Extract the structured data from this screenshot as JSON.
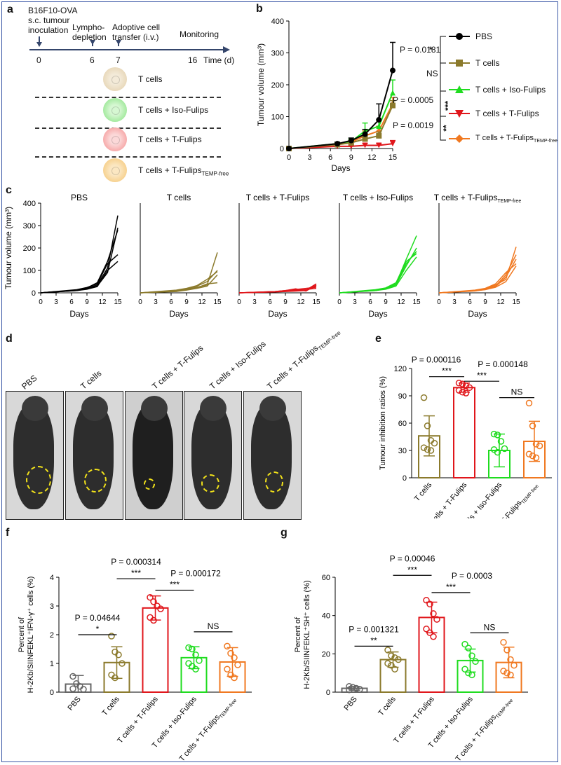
{
  "panel_letters": [
    "a",
    "b",
    "c",
    "d",
    "e",
    "f",
    "g"
  ],
  "timeline": {
    "event1": [
      "B16F10-OVA",
      "s.c. tumour",
      "inoculation"
    ],
    "event2": [
      "Lympho-",
      "depletion"
    ],
    "event3": [
      "Adoptive cell",
      "transfer (i.v.)"
    ],
    "event4": "Monitoring",
    "ticks": [
      "0",
      "6",
      "7",
      "16"
    ],
    "axis_label": "Time (d)",
    "groups": [
      {
        "label": "T cells",
        "color": "#e7d7b8"
      },
      {
        "label": "T cells + Iso-Fulips",
        "color": "#9fe89a"
      },
      {
        "label": "T cells + T-Fulips",
        "color": "#f6a6a6"
      },
      {
        "label": "T cells + T-Fulips",
        "sub": "TEMP-free",
        "color": "#f6cf8a"
      }
    ]
  },
  "legend_b": [
    {
      "label": "PBS",
      "color": "#000000"
    },
    {
      "label": "T cells",
      "color": "#8b7a2c"
    },
    {
      "label": "T cells + Iso-Fulips",
      "color": "#1fdc1f"
    },
    {
      "label": "T cells + T-Fulips",
      "color": "#e0161b"
    },
    {
      "label": "T cells + T-Fulips",
      "sub": "TEMP-free",
      "color": "#f07820"
    }
  ],
  "stats_b": {
    "p1": "P = 0.0181",
    "s1": "*",
    "ns": "NS",
    "p2": "P = 0.0005",
    "s2": "***",
    "p3": "P = 0.0019",
    "s3": "**"
  },
  "photo_labels": [
    {
      "label": "PBS"
    },
    {
      "label": "T cells"
    },
    {
      "label": "T cells + T-Fulips"
    },
    {
      "label": "T cells + Iso-Fulips"
    },
    {
      "label": "T cells + T-Fulips",
      "sub": "TEMP-free"
    }
  ],
  "stats_e": {
    "p1": "P = 0.000116",
    "s1": "***",
    "p2": "P = 0.000148",
    "s2": "***",
    "ns": "NS"
  },
  "stats_f": {
    "p1": "P = 0.000314",
    "s1": "***",
    "p2": "P = 0.000172",
    "s2": "***",
    "p3": "P = 0.04644",
    "s3": "*",
    "ns": "NS"
  },
  "stats_g": {
    "p1": "P = 0.00046",
    "s1": "***",
    "p2": "P = 0.0003",
    "s2": "***",
    "p3": "P = 0.001321",
    "s3": "**",
    "ns": "NS"
  },
  "chart_data": [
    {
      "id": "b",
      "type": "line",
      "title": "",
      "xlabel": "Days",
      "ylabel": "Tumour volume (mm³)",
      "x": [
        0,
        7,
        9,
        11,
        13,
        15
      ],
      "xticks": [
        0,
        3,
        6,
        9,
        12,
        15
      ],
      "yticks": [
        0,
        100,
        200,
        300,
        400
      ],
      "ylim": [
        0,
        400
      ],
      "series": [
        {
          "name": "PBS",
          "color": "#000000",
          "marker": "circle",
          "values": [
            0,
            15,
            25,
            45,
            90,
            245
          ],
          "err": [
            0,
            5,
            8,
            15,
            50,
            88
          ]
        },
        {
          "name": "T cells",
          "color": "#8b7a2c",
          "marker": "square",
          "values": [
            0,
            12,
            18,
            30,
            40,
            135
          ],
          "err": [
            0,
            4,
            5,
            10,
            12,
            15
          ]
        },
        {
          "name": "T cells + Iso-Fulips",
          "color": "#1fdc1f",
          "marker": "triangle",
          "values": [
            0,
            15,
            22,
            55,
            70,
            175
          ],
          "err": [
            0,
            5,
            8,
            25,
            20,
            40
          ]
        },
        {
          "name": "T cells + T-Fulips",
          "color": "#e0161b",
          "marker": "tri-down",
          "values": [
            0,
            7,
            7,
            10,
            10,
            15
          ],
          "err": [
            0,
            3,
            3,
            5,
            5,
            10
          ]
        },
        {
          "name": "T cells + T-FulipsTEMP-free",
          "color": "#f07820",
          "marker": "diamond",
          "values": [
            0,
            12,
            20,
            40,
            55,
            140
          ],
          "err": [
            0,
            4,
            6,
            15,
            15,
            20
          ]
        }
      ]
    },
    {
      "id": "c",
      "type": "line",
      "xlabel": "Days",
      "ylabel": "Tumour volume (mm³)",
      "xticks": [
        0,
        3,
        6,
        9,
        12,
        15
      ],
      "yticks": [
        0,
        100,
        200,
        300,
        400
      ],
      "ylim": [
        0,
        400
      ],
      "x": [
        0,
        7,
        9,
        11,
        13,
        15
      ],
      "groups": [
        {
          "name": "PBS",
          "color": "#000000",
          "lines": [
            [
              0,
              12,
              20,
              35,
              110,
              345
            ],
            [
              0,
              10,
              18,
              30,
              90,
              290
            ],
            [
              0,
              14,
              24,
              40,
              130,
              170
            ],
            [
              0,
              10,
              16,
              28,
              100,
              140
            ],
            [
              0,
              12,
              22,
              45,
              140,
              280
            ]
          ]
        },
        {
          "name": "T cells",
          "color": "#8b7a2c",
          "lines": [
            [
              0,
              8,
              15,
              25,
              35,
              180
            ],
            [
              0,
              10,
              18,
              30,
              50,
              100
            ],
            [
              0,
              6,
              12,
              20,
              30,
              80
            ],
            [
              0,
              8,
              14,
              22,
              40,
              45
            ],
            [
              0,
              12,
              20,
              32,
              60,
              95
            ]
          ]
        },
        {
          "name": "T cells + T-Fulips",
          "color": "#e0161b",
          "lines": [
            [
              0,
              5,
              8,
              10,
              12,
              40
            ],
            [
              0,
              6,
              10,
              15,
              20,
              25
            ],
            [
              0,
              4,
              6,
              8,
              10,
              30
            ],
            [
              0,
              5,
              8,
              12,
              15,
              20
            ],
            [
              0,
              6,
              10,
              18,
              8,
              35
            ]
          ]
        },
        {
          "name": "T cells + Iso-Fulips",
          "color": "#1fdc1f",
          "lines": [
            [
              0,
              12,
              20,
              40,
              150,
              255
            ],
            [
              0,
              10,
              18,
              35,
              120,
              200
            ],
            [
              0,
              14,
              22,
              45,
              140,
              175
            ],
            [
              0,
              10,
              16,
              30,
              100,
              160
            ],
            [
              0,
              12,
              20,
              38,
              130,
              185
            ]
          ]
        },
        {
          "name": "T cells + T-FulipsTEMP-free",
          "color": "#f07820",
          "lines": [
            [
              0,
              10,
              18,
              35,
              60,
              205
            ],
            [
              0,
              8,
              15,
              30,
              80,
              170
            ],
            [
              0,
              12,
              20,
              40,
              90,
              130
            ],
            [
              0,
              10,
              16,
              28,
              70,
              150
            ],
            [
              0,
              9,
              14,
              25,
              50,
              120
            ]
          ]
        }
      ]
    },
    {
      "id": "e",
      "type": "bar",
      "ylabel": "Tumour inhibition ratios (%)",
      "yticks": [
        0,
        30,
        60,
        90,
        120
      ],
      "ylim": [
        0,
        120
      ],
      "categories": [
        "T cells",
        "T cells + T-Fulips",
        "T cells + Iso-Fulips",
        "T cells + T-FulipsTEMP-free"
      ],
      "values": [
        46,
        99,
        30,
        40
      ],
      "err": [
        22,
        5,
        18,
        22
      ],
      "colors": [
        "#8b7a2c",
        "#e0161b",
        "#1fdc1f",
        "#f07820"
      ],
      "points": [
        [
          88,
          57,
          41,
          38,
          33,
          31,
          30
        ],
        [
          104,
          103,
          101,
          99,
          96,
          94,
          93
        ],
        [
          48,
          47,
          40,
          32,
          31,
          28
        ],
        [
          82,
          57,
          37,
          35,
          26,
          24,
          22
        ]
      ]
    },
    {
      "id": "f",
      "type": "bar",
      "ylabel": "Percent of H-2Kb/SIINFEKL⁺IFN-γ⁺ cells (%)",
      "yticks": [
        0,
        1,
        2,
        3,
        4
      ],
      "ylim": [
        0,
        4
      ],
      "categories": [
        "PBS",
        "T cells",
        "T cells + T-Fulips",
        "T cells + Iso-Fulips",
        "T cells + T-FulipsTEMP-free"
      ],
      "values": [
        0.28,
        1.03,
        2.93,
        1.2,
        1.05
      ],
      "err": [
        0.3,
        0.55,
        0.42,
        0.38,
        0.5
      ],
      "colors": [
        "#666666",
        "#8b7a2c",
        "#e0161b",
        "#1fdc1f",
        "#f07820"
      ],
      "points": [
        [
          0.55,
          0.3,
          0.2,
          0.1,
          0.12
        ],
        [
          1.95,
          1.4,
          1.3,
          1.0,
          0.6,
          0.5
        ],
        [
          3.3,
          3.15,
          3.0,
          2.9,
          2.6,
          2.5
        ],
        [
          1.55,
          1.5,
          1.3,
          1.1,
          1.0,
          0.9,
          0.8
        ],
        [
          1.6,
          1.35,
          1.2,
          0.95,
          0.8,
          0.6,
          0.5
        ]
      ]
    },
    {
      "id": "g",
      "type": "bar",
      "ylabel": "Percent of H-2Kb/SIINFEKL⁺SH⁺ cells (%)",
      "yticks": [
        0,
        20,
        40,
        60
      ],
      "ylim": [
        0,
        60
      ],
      "categories": [
        "PBS",
        "T cells",
        "T cells + T-Fulips",
        "T cells + Iso-Fulips",
        "T cells + T-FulipsTEMP-free"
      ],
      "values": [
        2,
        17,
        39,
        16.5,
        15.5
      ],
      "err": [
        1,
        4,
        8,
        6,
        8
      ],
      "colors": [
        "#666666",
        "#8b7a2c",
        "#e0161b",
        "#1fdc1f",
        "#f07820"
      ],
      "points": [
        [
          3,
          2.5,
          2,
          1.5,
          1.2
        ],
        [
          22,
          19,
          18,
          17,
          15,
          14,
          12
        ],
        [
          48,
          46,
          41,
          38,
          33,
          31,
          29
        ],
        [
          25,
          23,
          19,
          16,
          12,
          10,
          9
        ],
        [
          26,
          22,
          17,
          14,
          11,
          10,
          9
        ]
      ]
    }
  ]
}
